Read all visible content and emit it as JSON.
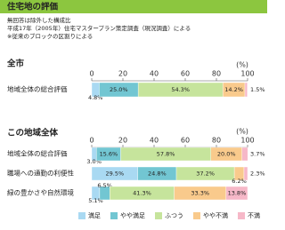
{
  "header": {
    "title": "住宅地の評価"
  },
  "notes": [
    "無回答は除外した構成比",
    "平成17年（2005年）住宅マスタープラン策定調査（現況調査）による",
    "※従来のブロックの区割りによる"
  ],
  "chart_data": [
    {
      "type": "bar",
      "orientation": "horizontal",
      "stacked": true,
      "title": "全市",
      "axis_label": "(%)",
      "categories": [
        "地域全体の総合評価"
      ],
      "xlim": [
        0,
        100
      ],
      "xticks": [
        0,
        20,
        40,
        60,
        80,
        100
      ],
      "series": [
        {
          "color": "#a9d9f2",
          "values": [
            4.8
          ],
          "value_labels": [
            "4.8%"
          ]
        },
        {
          "color": "#72c6d2",
          "values": [
            25.0
          ],
          "value_labels": [
            "25.0%"
          ]
        },
        {
          "color": "#c6e49c",
          "values": [
            54.3
          ],
          "value_labels": [
            "54.3%"
          ]
        },
        {
          "color": "#f9ca8c",
          "values": [
            14.2
          ],
          "value_labels": [
            "14.2%"
          ]
        },
        {
          "color": "#f6b8c8",
          "values": [
            1.5
          ],
          "value_labels": [
            "1.5%"
          ]
        }
      ]
    },
    {
      "type": "bar",
      "orientation": "horizontal",
      "stacked": true,
      "title": "この地域全体",
      "axis_label": "(%)",
      "categories": [
        "地域全体の総合評価",
        "職場への通勤の利便性",
        "緑の豊かさや自然環境"
      ],
      "xlim": [
        0,
        100
      ],
      "xticks": [
        0,
        20,
        40,
        60,
        80,
        100
      ],
      "legend": "bottom",
      "series": [
        {
          "name": "満足",
          "color": "#a9d9f2",
          "values": [
            3.0,
            29.5,
            5.1
          ],
          "value_labels": [
            "3.0%",
            "29.5%",
            "5.1%"
          ]
        },
        {
          "name": "やや満足",
          "color": "#72c6d2",
          "values": [
            15.6,
            24.8,
            6.5
          ],
          "value_labels": [
            "15.6%",
            "24.8%",
            "6.5%"
          ]
        },
        {
          "name": "ふつう",
          "color": "#c6e49c",
          "values": [
            57.8,
            37.2,
            41.3
          ],
          "value_labels": [
            "57.8%",
            "37.2%",
            "41.3%"
          ]
        },
        {
          "name": "やや不満",
          "color": "#f9ca8c",
          "values": [
            20.0,
            6.2,
            33.3
          ],
          "value_labels": [
            "20.0%",
            "6.2%",
            "33.3%"
          ]
        },
        {
          "name": "不満",
          "color": "#f6b8c8",
          "values": [
            3.7,
            2.3,
            13.8
          ],
          "value_labels": [
            "3.7%",
            "2.3%",
            "13.8%"
          ]
        }
      ]
    }
  ]
}
